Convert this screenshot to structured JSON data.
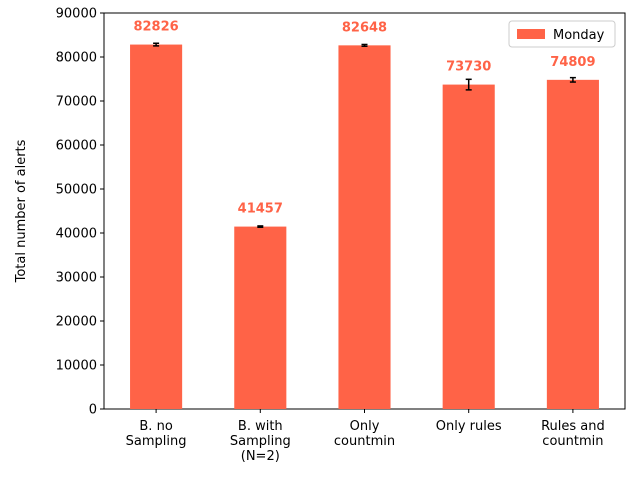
{
  "chart_data": {
    "type": "bar",
    "categories": [
      [
        "B. no",
        "Sampling"
      ],
      [
        "B. with",
        "Sampling",
        "(N=2)"
      ],
      [
        "Only",
        "countmin"
      ],
      [
        "Only rules"
      ],
      [
        "Rules and",
        "countmin"
      ]
    ],
    "series": [
      {
        "name": "Monday",
        "color": "#ff6347",
        "values": [
          82826,
          41457,
          82648,
          73730,
          74809
        ],
        "errors": [
          300,
          150,
          200,
          1200,
          500
        ],
        "data_labels": [
          "82826",
          "41457",
          "82648",
          "73730",
          "74809"
        ]
      }
    ],
    "title": "",
    "xlabel": "",
    "ylabel": "Total number of alerts",
    "ylim": [
      0,
      90000
    ],
    "yticks": [
      0,
      10000,
      20000,
      30000,
      40000,
      50000,
      60000,
      70000,
      80000,
      90000
    ],
    "grid": false,
    "legend_position": "top-right"
  }
}
